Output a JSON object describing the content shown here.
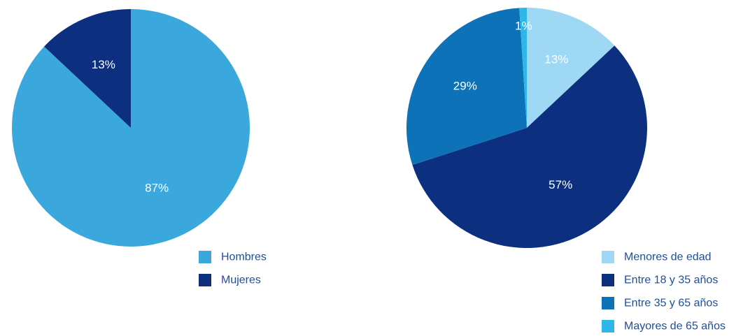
{
  "chart_data": [
    {
      "type": "pie",
      "title": "",
      "categories": [
        "Hombres",
        "Mujeres"
      ],
      "values": [
        87,
        13
      ],
      "labels": [
        "87%",
        "13%"
      ],
      "colors": [
        "#3AA8DC",
        "#0C2F80"
      ],
      "legend_position": "bottom-right",
      "start_angle_deg": 0,
      "direction": "clockwise"
    },
    {
      "type": "pie",
      "title": "",
      "categories": [
        "Menores de edad",
        "Entre 18 y 35 años",
        "Entre 35 y 65 años",
        "Mayores de 65 años"
      ],
      "values": [
        13,
        57,
        29,
        1
      ],
      "labels": [
        "13%",
        "57%",
        "29%",
        "1%"
      ],
      "colors": [
        "#9ED8F4",
        "#0C2F80",
        "#0E72B8",
        "#2DB8E8"
      ],
      "legend_position": "bottom-right",
      "start_angle_deg": 0,
      "direction": "clockwise"
    }
  ],
  "legend_text_color": "#1F4E9A"
}
